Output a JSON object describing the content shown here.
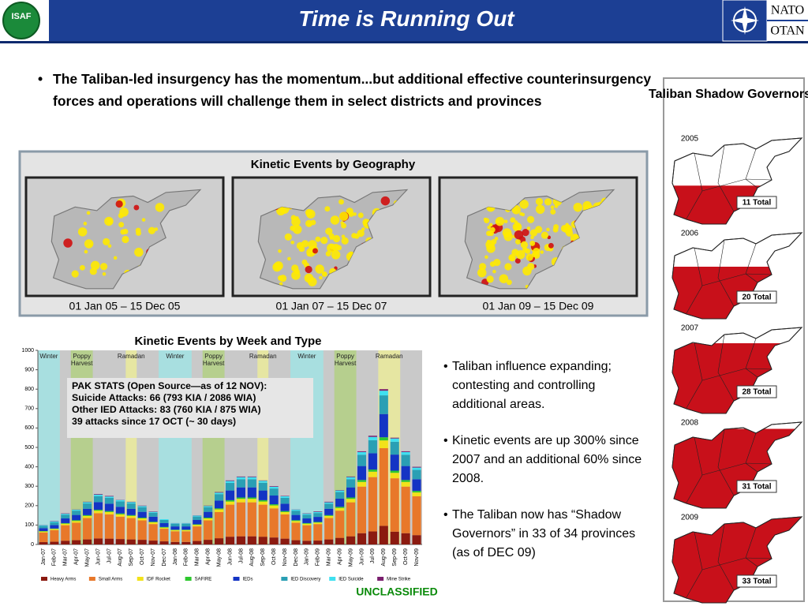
{
  "header": {
    "logo": "ISAF",
    "title": "Time is Running Out",
    "nato": "NATO",
    "otan": "OTAN"
  },
  "main_bullet": "The Taliban-led insurgency has the momentum...but additional effective counterinsurgency forces and operations will challenge them in select districts and provinces",
  "geography": {
    "title": "Kinetic Events by Geography",
    "maps": [
      {
        "label": "01 Jan 05 – 15 Dec 05"
      },
      {
        "label": "01 Jan 07 – 15 Dec 07"
      },
      {
        "label": "01 Jan 09 – 15 Dec 09"
      }
    ]
  },
  "chart_data": {
    "type": "bar",
    "stacked": true,
    "title": "Kinetic Events by Week and Type",
    "categories": [
      "Jan-07",
      "Feb-07",
      "Mar-07",
      "Apr-07",
      "May-07",
      "Jun-07",
      "Jul-07",
      "Aug-07",
      "Sep-07",
      "Oct-07",
      "Nov-07",
      "Dec-07",
      "Jan-08",
      "Feb-08",
      "Mar-08",
      "Apr-08",
      "May-08",
      "Jun-08",
      "Jul-08",
      "Aug-08",
      "Sep-08",
      "Oct-08",
      "Nov-08",
      "Dec-08",
      "Jan-09",
      "Feb-09",
      "Mar-09",
      "Apr-09",
      "May-09",
      "Jun-09",
      "Jul-09",
      "Aug-09",
      "Sep-09",
      "Oct-09",
      "Nov-09"
    ],
    "series": [
      {
        "name": "Heavy Arms",
        "color": "#8b1a10",
        "values": [
          12,
          14,
          19,
          22,
          26,
          31,
          30,
          28,
          26,
          24,
          20,
          16,
          13,
          13,
          18,
          24,
          32,
          40,
          42,
          42,
          40,
          36,
          30,
          22,
          19,
          20,
          26,
          34,
          42,
          58,
          67,
          96,
          66,
          58,
          48
        ]
      },
      {
        "name": "Small Arms",
        "color": "#e8782a",
        "values": [
          50,
          60,
          80,
          90,
          110,
          130,
          125,
          115,
          110,
          100,
          85,
          65,
          55,
          55,
          75,
          100,
          135,
          165,
          175,
          175,
          165,
          150,
          125,
          90,
          80,
          85,
          110,
          140,
          175,
          240,
          280,
          400,
          275,
          240,
          200
        ]
      },
      {
        "name": "IDF Rocket",
        "color": "#f2e21a",
        "values": [
          5,
          6,
          8,
          9,
          11,
          13,
          12,
          12,
          11,
          10,
          9,
          6,
          6,
          6,
          8,
          10,
          14,
          16,
          18,
          18,
          16,
          15,
          12,
          9,
          8,
          8,
          11,
          14,
          18,
          24,
          28,
          40,
          28,
          24,
          20
        ]
      },
      {
        "name": "SAFIRE",
        "color": "#2ec82e",
        "values": [
          2,
          2,
          3,
          4,
          4,
          5,
          5,
          5,
          4,
          4,
          3,
          3,
          2,
          2,
          3,
          4,
          5,
          7,
          7,
          7,
          7,
          6,
          5,
          4,
          3,
          3,
          4,
          6,
          7,
          10,
          11,
          16,
          11,
          10,
          8
        ]
      },
      {
        "name": "IEDs",
        "color": "#1434c4",
        "values": [
          15,
          18,
          24,
          27,
          33,
          39,
          38,
          34,
          33,
          30,
          26,
          20,
          17,
          17,
          22,
          30,
          40,
          50,
          52,
          52,
          50,
          45,
          38,
          27,
          24,
          26,
          33,
          42,
          52,
          72,
          84,
          120,
          83,
          72,
          60
        ]
      },
      {
        "name": "IED Discovery",
        "color": "#2a9fb4",
        "values": [
          12,
          14,
          19,
          22,
          27,
          31,
          30,
          28,
          27,
          24,
          20,
          16,
          13,
          13,
          18,
          24,
          33,
          39,
          42,
          42,
          40,
          36,
          30,
          22,
          19,
          20,
          26,
          34,
          42,
          58,
          67,
          96,
          66,
          58,
          48
        ]
      },
      {
        "name": "IED Suicide",
        "color": "#3fe0f0",
        "values": [
          3,
          4,
          5,
          5,
          7,
          8,
          7,
          7,
          7,
          6,
          5,
          4,
          3,
          3,
          5,
          6,
          8,
          10,
          11,
          11,
          10,
          9,
          8,
          5,
          5,
          5,
          7,
          8,
          11,
          14,
          17,
          24,
          17,
          14,
          12
        ]
      },
      {
        "name": "Mine Strike",
        "color": "#7a1f6e",
        "values": [
          1,
          2,
          2,
          1,
          2,
          3,
          3,
          1,
          2,
          2,
          2,
          0,
          1,
          1,
          1,
          2,
          3,
          3,
          3,
          3,
          2,
          3,
          2,
          1,
          2,
          3,
          3,
          2,
          3,
          4,
          6,
          8,
          4,
          4,
          4
        ]
      }
    ],
    "ylim": [
      0,
      1000
    ],
    "yticks": [
      0,
      100,
      200,
      300,
      400,
      500,
      600,
      700,
      800,
      900,
      1000
    ],
    "season_bands": [
      {
        "label": "Winter",
        "from": "Jan-07",
        "to": "Feb-07",
        "color": "#a8dfe0"
      },
      {
        "label": "Poppy Harvest",
        "from": "Apr-07",
        "to": "May-07",
        "color": "#b6cf8e"
      },
      {
        "label": "Ramadan",
        "from": "Sep-07",
        "to": "Sep-07",
        "color": "#e6e6a2"
      },
      {
        "label": "Winter",
        "from": "Dec-07",
        "to": "Feb-08",
        "color": "#a8dfe0"
      },
      {
        "label": "Poppy Harvest",
        "from": "Apr-08",
        "to": "May-08",
        "color": "#b6cf8e"
      },
      {
        "label": "Ramadan",
        "from": "Sep-08",
        "to": "Sep-08",
        "color": "#e6e6a2"
      },
      {
        "label": "Winter",
        "from": "Dec-08",
        "to": "Feb-09",
        "color": "#a8dfe0"
      },
      {
        "label": "Poppy Harvest",
        "from": "Apr-09",
        "to": "May-09",
        "color": "#b6cf8e"
      },
      {
        "label": "Ramadan",
        "from": "Aug-09",
        "to": "Sep-09",
        "color": "#e6e6a2"
      }
    ],
    "text_box": [
      "PAK STATS (Open Source—as of 12 NOV):",
      "Suicide Attacks: 66 (793 KIA / 2086 WIA)",
      "Other IED Attacks: 83 (760 KIA / 875 WIA)",
      "39 attacks since 17 OCT (~ 30 days)"
    ]
  },
  "side_bullets": [
    "Taliban influence expanding; contesting and controlling additional areas.",
    "Kinetic events are up 300% since 2007 and an additional 60% since 2008.",
    "The Taliban now has “Shadow Governors” in 33 of 34 provinces (as of DEC 09)"
  ],
  "shadow_governors": {
    "title": "Taliban Shadow Governors",
    "maps": [
      {
        "year": "2005",
        "total": "11 Total"
      },
      {
        "year": "2006",
        "total": "20 Total"
      },
      {
        "year": "2007",
        "total": "28 Total"
      },
      {
        "year": "2008",
        "total": "31 Total"
      },
      {
        "year": "2009",
        "total": "33 Total"
      }
    ]
  },
  "classification": "UNCLASSIFIED"
}
